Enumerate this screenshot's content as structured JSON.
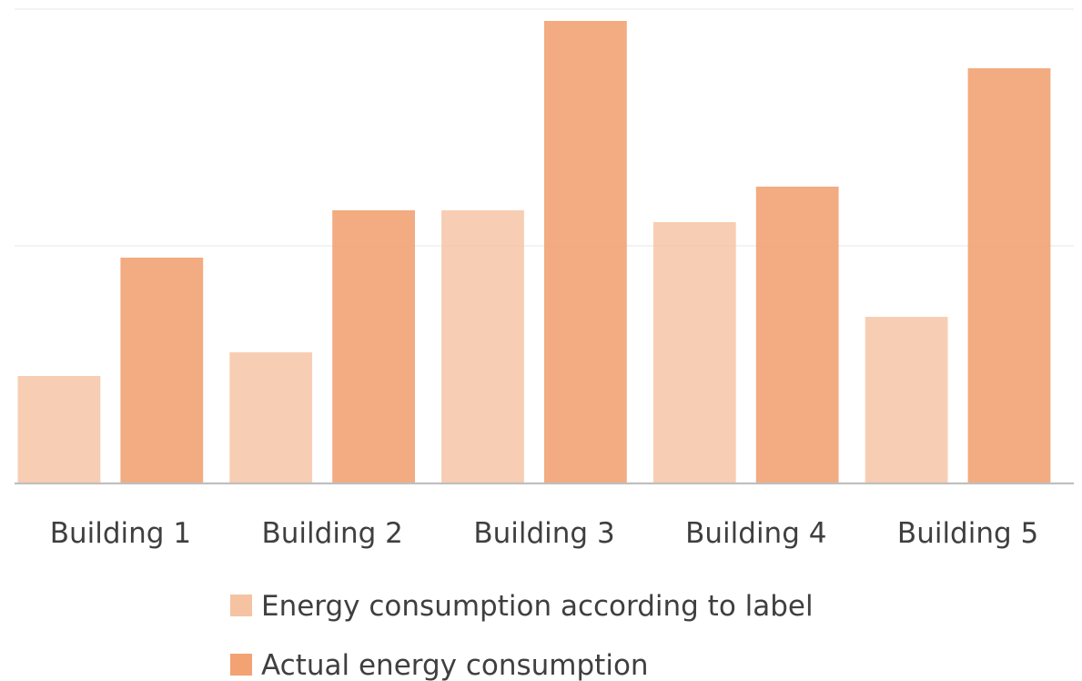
{
  "chart_data": {
    "type": "bar",
    "categories": [
      "Building 1",
      "Building 2",
      "Building 3",
      "Building 4",
      "Building 5"
    ],
    "series": [
      {
        "name": "Energy consumption according to label",
        "values": [
          45,
          55,
          115,
          110,
          70
        ],
        "color": "#f5c3a2"
      },
      {
        "name": "Actual energy consumption",
        "values": [
          95,
          115,
          195,
          125,
          175
        ],
        "color": "#f2a273"
      }
    ],
    "ylim": [
      0,
      200
    ],
    "grid": true,
    "legend_position": "bottom",
    "title": "",
    "xlabel": "",
    "ylabel": ""
  }
}
